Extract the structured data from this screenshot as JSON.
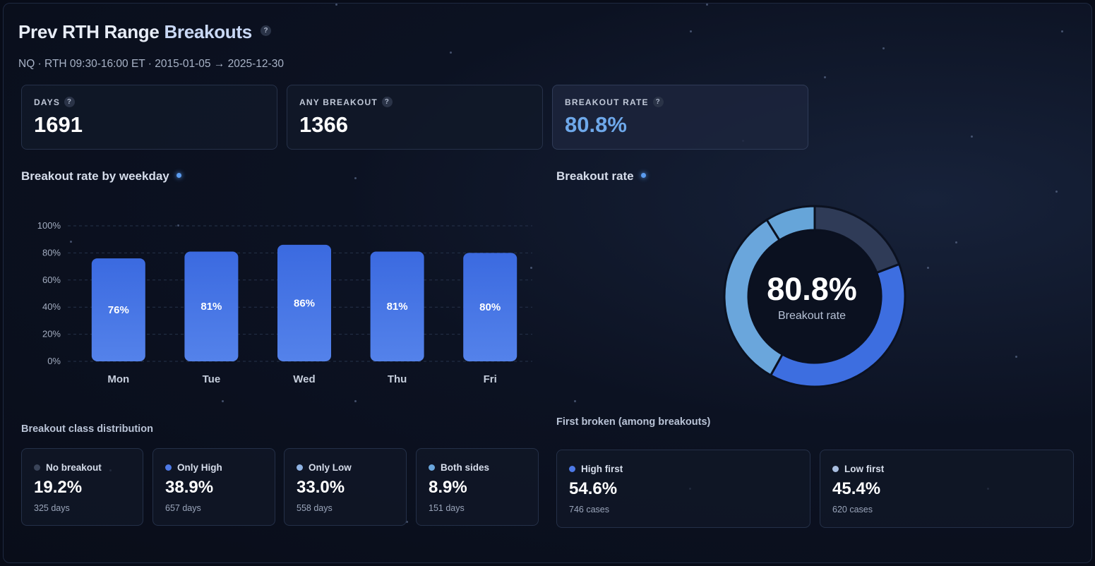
{
  "header": {
    "title_main": "Prev RTH Range ",
    "title_accent": "Breakouts",
    "help": "?",
    "subtitle": "NQ · RTH 09:30-16:00 ET · 2015-01-05 → 2025-12-30"
  },
  "kpis": [
    {
      "label": "DAYS",
      "value": "1691",
      "help": "?"
    },
    {
      "label": "ANY BREAKOUT",
      "value": "1366",
      "help": "?"
    },
    {
      "label": "BREAKOUT RATE",
      "value": "80.8%",
      "help": "?"
    }
  ],
  "sections": {
    "weekday_title": "Breakout rate by weekday",
    "donut_title": "Breakout rate",
    "class_title": "Breakout class distribution",
    "first_title": "First broken (among breakouts)"
  },
  "chart_data": [
    {
      "type": "bar",
      "title": "Breakout rate by weekday",
      "categories": [
        "Mon",
        "Tue",
        "Wed",
        "Thu",
        "Fri"
      ],
      "values": [
        76,
        81,
        86,
        81,
        80
      ],
      "value_labels": [
        "76%",
        "81%",
        "86%",
        "81%",
        "80%"
      ],
      "yticks": [
        "0%",
        "20%",
        "40%",
        "60%",
        "80%",
        "100%"
      ],
      "ylim": [
        0,
        100
      ],
      "grid": true,
      "colors": {
        "bar_top": "#3b6ae0",
        "bar_bottom": "#5482ea",
        "grid": "#26324a"
      }
    },
    {
      "type": "pie",
      "title": "Breakout rate",
      "center_value": "80.8%",
      "center_label": "Breakout rate",
      "slices": [
        {
          "name": "No breakout",
          "value": 19.2,
          "color": "#2f3b57"
        },
        {
          "name": "Only High",
          "value": 38.9,
          "color": "#3d6ee0"
        },
        {
          "name": "Only Low",
          "value": 33.0,
          "color": "#6aa6dc"
        },
        {
          "name": "Both sides",
          "value": 8.9,
          "color": "#66a5d9"
        }
      ]
    }
  ],
  "class_cards": [
    {
      "label": "No breakout",
      "value": "19.2%",
      "sub": "325 days",
      "color": "#3a4459"
    },
    {
      "label": "Only High",
      "value": "38.9%",
      "sub": "657 days",
      "color": "#4d79e6"
    },
    {
      "label": "Only Low",
      "value": "33.0%",
      "sub": "558 days",
      "color": "#8fb3e3"
    },
    {
      "label": "Both sides",
      "value": "8.9%",
      "sub": "151 days",
      "color": "#6aa6dc"
    }
  ],
  "first_cards": [
    {
      "label": "High first",
      "value": "54.6%",
      "sub": "746 cases",
      "color": "#4d79e6"
    },
    {
      "label": "Low first",
      "value": "45.4%",
      "sub": "620 cases",
      "color": "#a9bee0"
    }
  ]
}
